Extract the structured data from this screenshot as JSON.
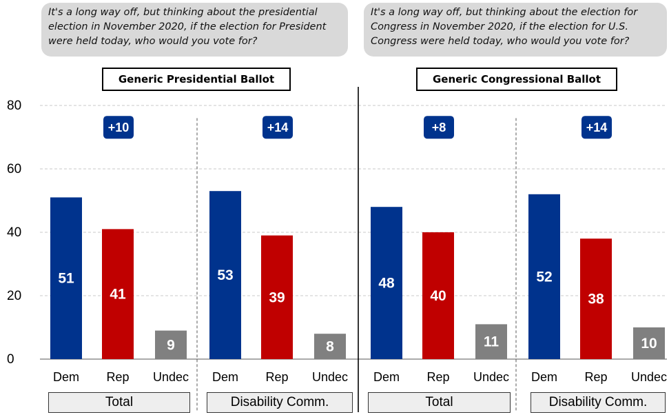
{
  "questions": {
    "left": "It's a long way off, but thinking about the presidential election in November 2020, if the election for President were held today, who would you vote for?",
    "right": "It's a long way off, but thinking about the election for Congress in November 2020, if the election for U.S. Congress were held today, who would you vote for?"
  },
  "colors": {
    "dem": "#00338d",
    "rep": "#c00000",
    "undec": "#808080",
    "badge": "#00338d"
  },
  "chart_data": {
    "type": "bar",
    "ylim": [
      0,
      80
    ],
    "yticks": [
      "0",
      "20",
      "40",
      "60",
      "80"
    ],
    "grid": true,
    "categories": [
      "Dem",
      "Rep",
      "Undec"
    ],
    "panels": [
      {
        "title": "Generic Presidential Ballot",
        "groups": [
          {
            "label": "Total",
            "margin": "+10",
            "values": [
              51,
              41,
              9
            ]
          },
          {
            "label": "Disability Comm.",
            "margin": "+14",
            "values": [
              53,
              39,
              8
            ]
          }
        ]
      },
      {
        "title": "Generic Congressional Ballot",
        "groups": [
          {
            "label": "Total",
            "margin": "+8",
            "values": [
              48,
              40,
              11
            ]
          },
          {
            "label": "Disability Comm.",
            "margin": "+14",
            "values": [
              52,
              38,
              10
            ]
          }
        ]
      }
    ]
  }
}
